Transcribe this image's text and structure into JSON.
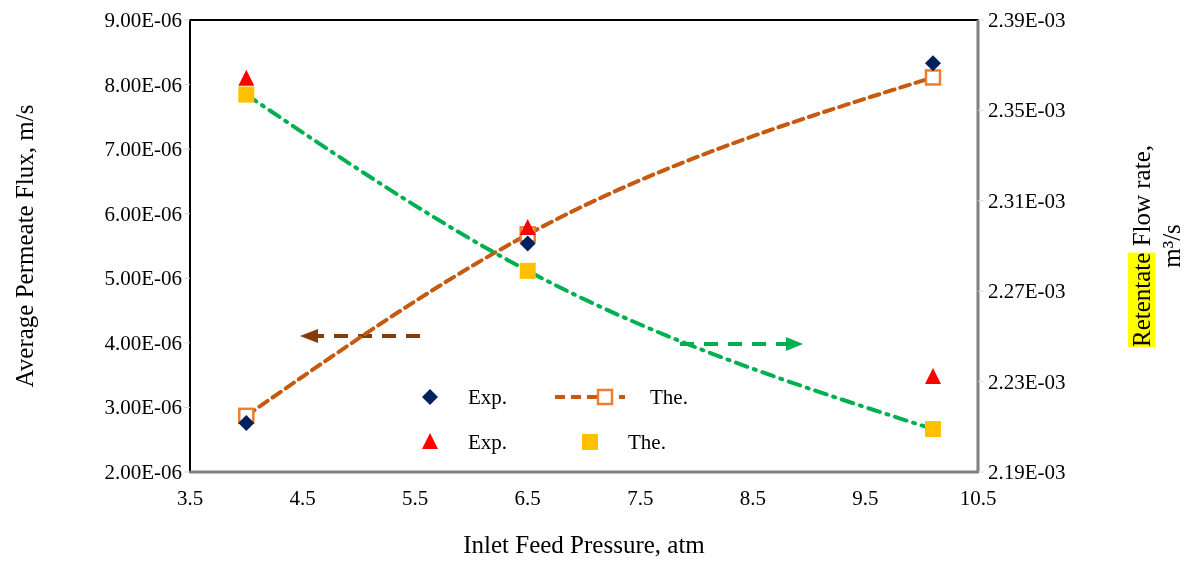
{
  "chart_data": {
    "type": "line",
    "xlabel": "Inlet Feed Pressure, atm",
    "ylabel": "Average Permeate Flux, m/s",
    "y2label": "Retentate Flow rate, m³/s",
    "xlim": [
      3.5,
      10.5
    ],
    "xticks": [
      3.5,
      4.5,
      5.5,
      6.5,
      7.5,
      8.5,
      9.5,
      10.5
    ],
    "ylim": [
      2e-06,
      9e-06
    ],
    "yticks": [
      {
        "value": 2e-06,
        "label": "2.00E-06"
      },
      {
        "value": 3e-06,
        "label": "3.00E-06"
      },
      {
        "value": 4e-06,
        "label": "4.00E-06"
      },
      {
        "value": 5e-06,
        "label": "5.00E-06"
      },
      {
        "value": 6e-06,
        "label": "6.00E-06"
      },
      {
        "value": 7e-06,
        "label": "7.00E-06"
      },
      {
        "value": 8e-06,
        "label": "8.00E-06"
      },
      {
        "value": 9e-06,
        "label": "9.00E-06"
      }
    ],
    "y2lim": [
      0.00219,
      0.00239
    ],
    "y2ticks": [
      {
        "value": 0.00219,
        "label": "2.19E-03"
      },
      {
        "value": 0.00223,
        "label": "2.23E-03"
      },
      {
        "value": 0.00227,
        "label": "2.27E-03"
      },
      {
        "value": 0.00231,
        "label": "2.31E-03"
      },
      {
        "value": 0.00235,
        "label": "2.35E-03"
      },
      {
        "value": 0.00239,
        "label": "2.39E-03"
      }
    ],
    "grid": false,
    "legend": "bottom",
    "series": [
      {
        "name": "Exp.",
        "type": "scatter",
        "marker": "diamond",
        "color": "#002060",
        "x": [
          4.0,
          6.5,
          10.1
        ],
        "values": [
          2.76e-06,
          5.54e-06,
          8.33e-06
        ]
      },
      {
        "name": "The.",
        "marker": "square",
        "line_style": "dashed",
        "color": "#c55a11",
        "x": [
          4.0,
          6.5,
          10.1
        ],
        "values": [
          2.87e-06,
          5.68e-06,
          8.11e-06
        ]
      },
      {
        "name": "Exp.",
        "type": "scatter",
        "marker": "triangle",
        "color": "#ff0000",
        "axis": "y2",
        "x": [
          4.0,
          6.5,
          10.1
        ],
        "values": [
          0.002364,
          0.002298,
          0.002232
        ]
      },
      {
        "type": "line",
        "marker": "none",
        "line_style": "dashdot",
        "color": "#00b050",
        "axis": "y2",
        "x": [
          4.0,
          6.5,
          10.1
        ],
        "values": [
          0.002357,
          0.002279,
          0.002209
        ]
      },
      {
        "name": "The.",
        "type": "scatter",
        "marker": "square",
        "color": "#ffc000",
        "axis": "y2",
        "x": [
          4.0,
          6.5,
          10.1
        ],
        "values": [
          0.002357,
          0.002279,
          0.002209
        ]
      }
    ]
  }
}
